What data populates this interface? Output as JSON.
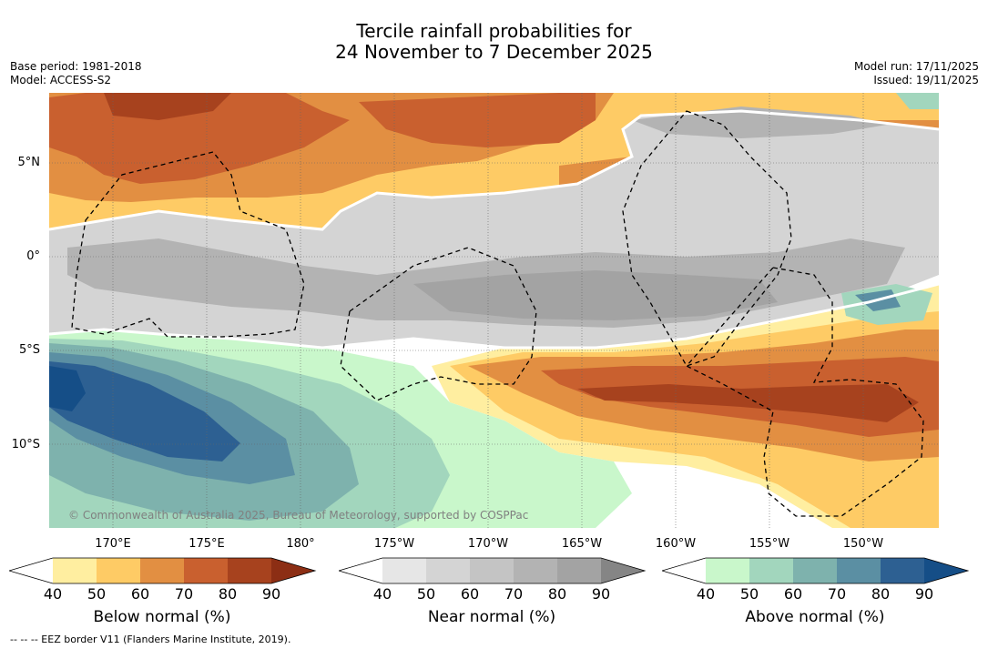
{
  "title": {
    "line1": "Tercile rainfall probabilities for",
    "line2": "24 November to 7 December 2025"
  },
  "meta": {
    "base_period": "Base period: 1981-2018",
    "model": "Model: ACCESS-S2",
    "model_run": "Model run: 17/11/2025",
    "issued": "Issued: 19/11/2025"
  },
  "map": {
    "latitudes": [
      "5°N",
      "0°",
      "5°S",
      "10°S"
    ],
    "longitudes": [
      "170°E",
      "175°E",
      "180°",
      "175°W",
      "170°W",
      "165°W",
      "160°W",
      "155°W",
      "150°W"
    ],
    "watermark": "© Commonwealth of Australia 2025, Bureau of Meteorology, supported by COSPPac"
  },
  "colorbars": [
    {
      "title": "Below normal (%)",
      "ticks": [
        "40",
        "50",
        "60",
        "70",
        "80",
        "90"
      ],
      "colors": [
        "#ffffff",
        "#ffeea0",
        "#fecb65",
        "#e28f42",
        "#c9602f",
        "#a7421e",
        "#8c2e14"
      ]
    },
    {
      "title": "Near normal (%)",
      "ticks": [
        "40",
        "50",
        "60",
        "70",
        "80",
        "90"
      ],
      "colors": [
        "#ffffff",
        "#e6e6e6",
        "#d4d4d4",
        "#c4c4c4",
        "#b3b3b3",
        "#a3a3a3",
        "#858585"
      ]
    },
    {
      "title": "Above normal (%)",
      "ticks": [
        "40",
        "50",
        "60",
        "70",
        "80",
        "90"
      ],
      "colors": [
        "#ffffff",
        "#c9f7cb",
        "#a2d6bd",
        "#7eb2ad",
        "#5b8fa3",
        "#2d6092",
        "#154e87"
      ]
    }
  ],
  "footnote": "--  --  -- EEZ border V11 (Flanders Marine Institute, 2019)."
}
